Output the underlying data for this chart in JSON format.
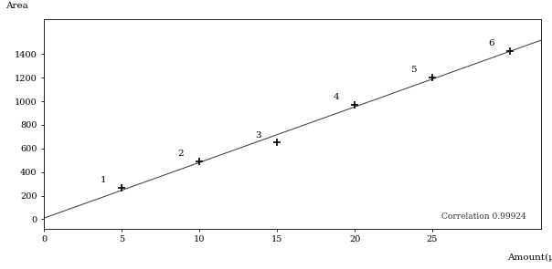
{
  "points_x": [
    5,
    10,
    15,
    20,
    25,
    30
  ],
  "points_y": [
    270,
    490,
    650,
    970,
    1200,
    1430
  ],
  "labels": [
    "1",
    "2",
    "3",
    "4",
    "5",
    "6"
  ],
  "xlabel": "Amount(μg/L)",
  "ylabel": "Area",
  "correlation_text": "Correlation 0.99924",
  "xlim": [
    0,
    32
  ],
  "ylim": [
    -80,
    1700
  ],
  "xticks": [
    0,
    5,
    10,
    15,
    20,
    25
  ],
  "yticks": [
    0,
    200,
    400,
    600,
    800,
    1000,
    1200,
    1400
  ],
  "line_color": "#333333",
  "marker_color": "#000000",
  "bg_color": "#ffffff",
  "plot_bg": "#ffffff"
}
